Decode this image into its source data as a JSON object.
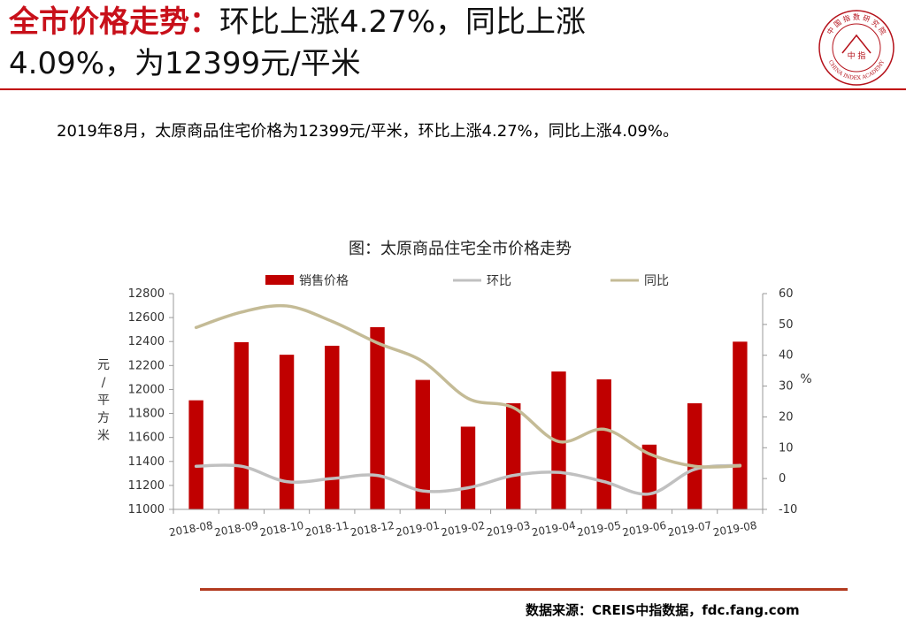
{
  "header": {
    "title_lead": "全市价格走势：",
    "title_rest_line1": "环比上涨4.27%，同比上涨",
    "title_line2": "4.09%，为12399元/平米",
    "logo_center_text": "中 指",
    "logo_top_text": "中 国 指 数 研 究 院",
    "logo_bottom_text": "CHINA INDEX ACADEMY",
    "accent_color": "#c8101a"
  },
  "summary": "2019年8月，太原商品住宅价格为12399元/平米，环比上涨4.27%，同比上涨4.09%。",
  "source": "数据来源：CREIS中指数据，fdc.fang.com",
  "chart_data": {
    "type": "bar",
    "title": "图：太原商品住宅全市价格走势",
    "categories": [
      "2018-08",
      "2018-09",
      "2018-10",
      "2018-11",
      "2018-12",
      "2019-01",
      "2019-02",
      "2019-03",
      "2019-04",
      "2019-05",
      "2019-06",
      "2019-07",
      "2019-08"
    ],
    "series": [
      {
        "name": "销售价格",
        "type": "bar",
        "axis": "left",
        "color": "#c00000",
        "values": [
          11910,
          12395,
          12290,
          12365,
          12520,
          12080,
          11690,
          11885,
          12150,
          12085,
          11540,
          11885,
          12399
        ]
      },
      {
        "name": "环比",
        "type": "line",
        "axis": "right",
        "color": "#c0c0c0",
        "values": [
          4,
          4,
          -1,
          0,
          1,
          -4,
          -3,
          1,
          2,
          -1,
          -5,
          3,
          4.27
        ]
      },
      {
        "name": "同比",
        "type": "line",
        "axis": "right",
        "color": "#c4bb96",
        "values": [
          49,
          54,
          56,
          51,
          44,
          38,
          26,
          23,
          12,
          16,
          8,
          4,
          4.09
        ]
      }
    ],
    "ylabel": "元/平方米",
    "ylim": [
      11000,
      12800
    ],
    "yticks": [
      11000,
      11200,
      11400,
      11600,
      11800,
      12000,
      12200,
      12400,
      12600,
      12800
    ],
    "y2label": "%",
    "y2lim": [
      -10,
      60
    ],
    "y2ticks": [
      -10,
      0,
      10,
      20,
      30,
      40,
      50,
      60
    ],
    "grid": false,
    "legend": "top"
  }
}
